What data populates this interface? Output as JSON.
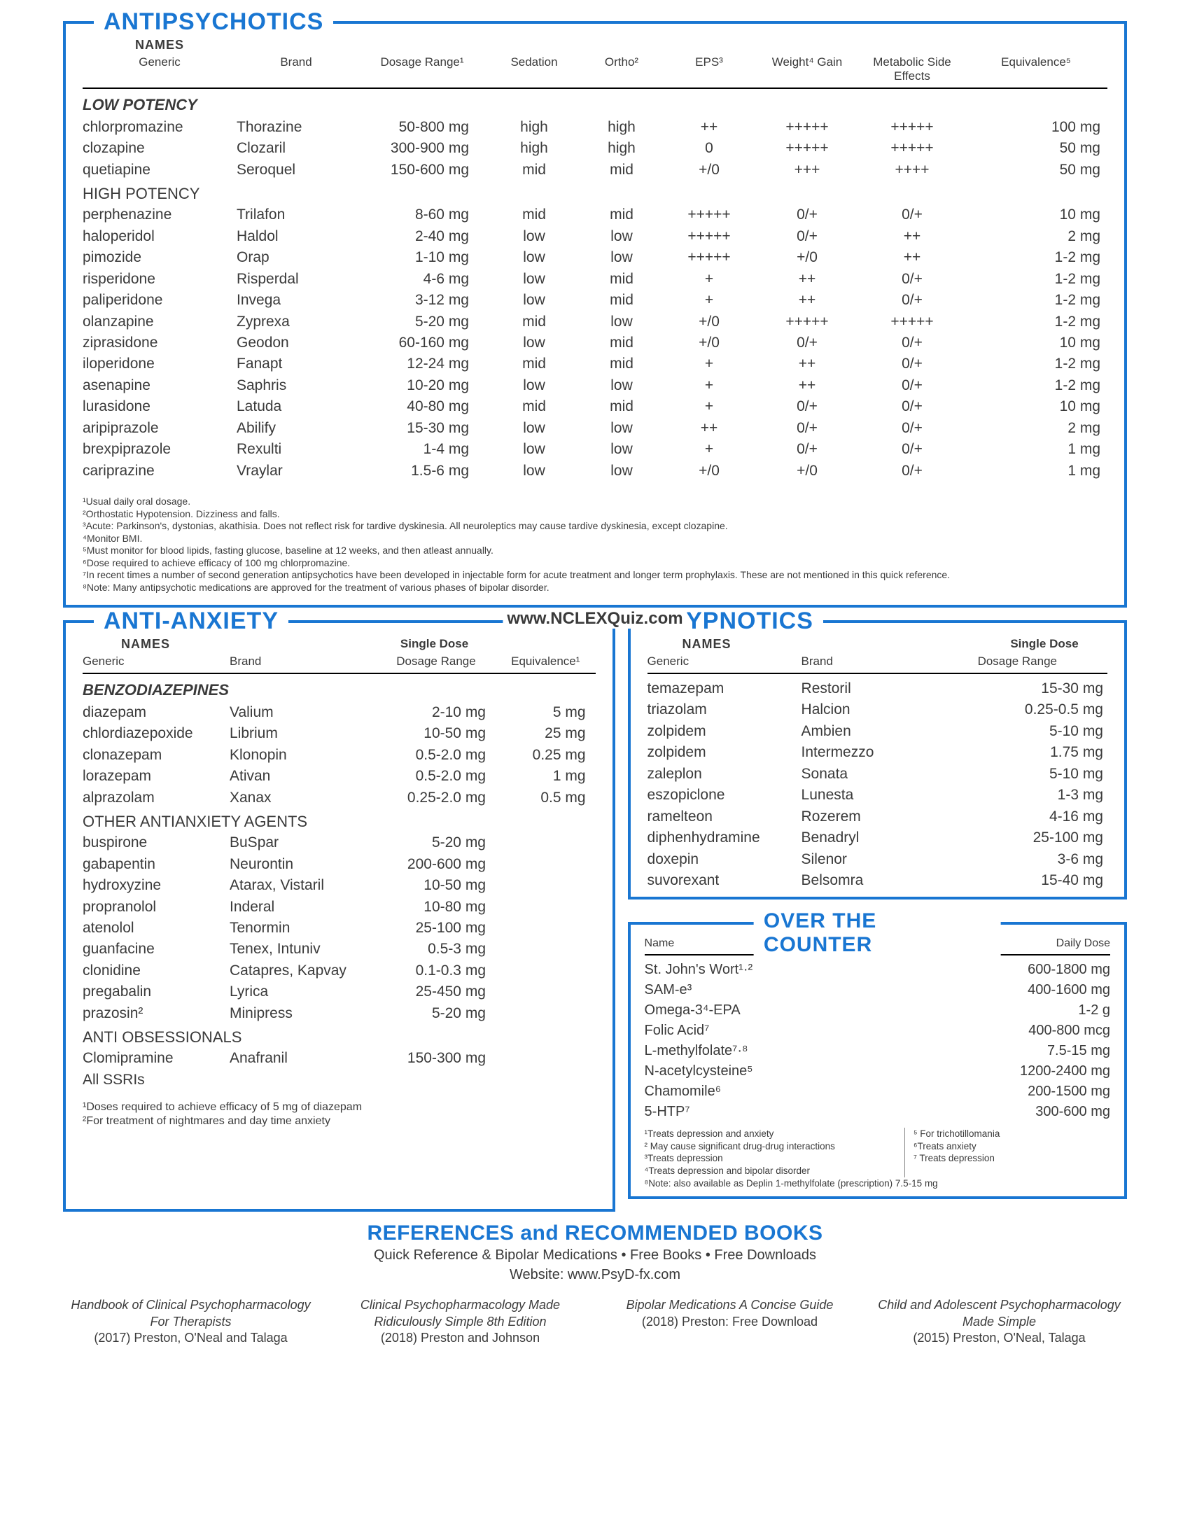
{
  "colors": {
    "accent": "#1976d2",
    "text": "#3a3a3a"
  },
  "watermark": "www.NCLEXQuiz.com",
  "antipsychotics": {
    "title": "ANTIPSYCHOTICS",
    "names_label": "NAMES",
    "columns": [
      "Generic",
      "Brand",
      "Dosage Range¹",
      "Sedation",
      "Ortho²",
      "EPS³",
      "Weight⁴ Gain",
      "Metabolic Side Effects",
      "Equivalence⁵"
    ],
    "groups": [
      {
        "label": "LOW POTENCY",
        "italic": true,
        "rows": [
          [
            "chlorpromazine",
            "Thorazine",
            "50-800 mg",
            "high",
            "high",
            "++",
            "+++++",
            "+++++",
            "100 mg"
          ],
          [
            "clozapine",
            "Clozaril",
            "300-900 mg",
            "high",
            "high",
            "0",
            "+++++",
            "+++++",
            "50 mg"
          ],
          [
            "quetiapine",
            "Seroquel",
            "150-600 mg",
            "mid",
            "mid",
            "+/0",
            "+++",
            "++++",
            "50 mg"
          ]
        ]
      },
      {
        "label": "HIGH POTENCY",
        "italic": false,
        "rows": [
          [
            "perphenazine",
            "Trilafon",
            "8-60  mg",
            "mid",
            "mid",
            "+++++",
            "0/+",
            "0/+",
            "10 mg"
          ],
          [
            "haloperidol",
            "Haldol",
            "2-40  mg",
            "low",
            "low",
            "+++++",
            "0/+",
            "++",
            "2 mg"
          ],
          [
            "pimozide",
            "Orap",
            "1-10  mg",
            "low",
            "low",
            "+++++",
            "+/0",
            "++",
            "1-2 mg"
          ],
          [
            "risperidone",
            "Risperdal",
            "4-6  mg",
            "low",
            "mid",
            "+",
            "++",
            "0/+",
            "1-2 mg"
          ],
          [
            "paliperidone",
            "Invega",
            "3-12  mg",
            "low",
            "mid",
            "+",
            "++",
            "0/+",
            "1-2 mg"
          ],
          [
            "olanzapine",
            "Zyprexa",
            "5-20 mg",
            "mid",
            "low",
            "+/0",
            "+++++",
            "+++++",
            "1-2 mg"
          ],
          [
            "ziprasidone",
            "Geodon",
            "60-160 mg",
            "low",
            "mid",
            "+/0",
            "0/+",
            "0/+",
            "10 mg"
          ],
          [
            "iloperidone",
            "Fanapt",
            "12-24  mg",
            "mid",
            "mid",
            "+",
            "++",
            "0/+",
            "1-2 mg"
          ],
          [
            "asenapine",
            "Saphris",
            "10-20  mg",
            "low",
            "low",
            "+",
            "++",
            "0/+",
            "1-2 mg"
          ],
          [
            "lurasidone",
            "Latuda",
            "40-80  mg",
            "mid",
            "mid",
            "+",
            "0/+",
            "0/+",
            "10 mg"
          ],
          [
            "aripiprazole",
            "Abilify",
            "15-30  mg",
            "low",
            "low",
            "++",
            "0/+",
            "0/+",
            "2 mg"
          ],
          [
            "brexpiprazole",
            "Rexulti",
            "1-4    mg",
            "low",
            "low",
            "+",
            "0/+",
            "0/+",
            "1 mg"
          ],
          [
            "cariprazine",
            "Vraylar",
            "1.5-6 mg",
            "low",
            "low",
            "+/0",
            "+/0",
            "0/+",
            "1 mg"
          ]
        ]
      }
    ],
    "footnotes": [
      "¹Usual daily oral dosage.",
      "²Orthostatic Hypotension. Dizziness and falls.",
      "³Acute: Parkinson's, dystonias, akathisia. Does not reflect risk for tardive dyskinesia.  All neuroleptics may cause tardive dyskinesia, except clozapine.",
      "⁴Monitor BMI.",
      "⁵Must monitor for blood lipids, fasting glucose, baseline at 12 weeks, and then atleast annually.",
      "⁶Dose required to achieve efficacy of 100 mg chlorpromazine.",
      "⁷In recent times a number of second generation antipsychotics have been developed in injectable form for acute treatment and longer term prophylaxis. These are not mentioned in this quick reference.",
      "⁸Note: Many antipsychotic medications are approved for the treatment of various phases of bipolar disorder."
    ]
  },
  "antianxiety": {
    "title": "ANTI-ANXIETY",
    "names_label": "NAMES",
    "dose_label": "Single Dose",
    "columns": [
      "Generic",
      "Brand",
      "Dosage Range",
      "Equivalence¹"
    ],
    "groups": [
      {
        "label": "BENZODIAZEPINES",
        "italic": true,
        "rows": [
          [
            "diazepam",
            "Valium",
            "2-10 mg",
            "5 mg"
          ],
          [
            "chlordiazepoxide",
            "Librium",
            "10-50 mg",
            "25 mg"
          ],
          [
            "clonazepam",
            "Klonopin",
            "0.5-2.0 mg",
            "0.25 mg"
          ],
          [
            "lorazepam",
            "Ativan",
            "0.5-2.0 mg",
            "1 mg"
          ],
          [
            "alprazolam",
            "Xanax",
            "0.25-2.0 mg",
            "0.5 mg"
          ]
        ]
      },
      {
        "label": "OTHER ANTIANXIETY AGENTS",
        "italic": false,
        "rows": [
          [
            "buspirone",
            "BuSpar",
            "5-20 mg",
            ""
          ],
          [
            "gabapentin",
            "Neurontin",
            "200-600 mg",
            ""
          ],
          [
            "hydroxyzine",
            "Atarax, Vistaril",
            "10-50 mg",
            ""
          ],
          [
            "propranolol",
            "Inderal",
            "10-80 mg",
            ""
          ],
          [
            "atenolol",
            "Tenormin",
            "25-100 mg",
            ""
          ],
          [
            "guanfacine",
            "Tenex, Intuniv",
            "0.5-3 mg",
            ""
          ],
          [
            "clonidine",
            "Catapres, Kapvay",
            "0.1-0.3 mg",
            ""
          ],
          [
            "pregabalin",
            "Lyrica",
            "25-450 mg",
            ""
          ],
          [
            "prazosin²",
            "Minipress",
            "5-20 mg",
            ""
          ]
        ]
      },
      {
        "label": "ANTI OBSESSIONALS",
        "italic": false,
        "rows": [
          [
            "Clomipramine",
            "Anafranil",
            "150-300 mg",
            ""
          ],
          [
            "All SSRIs",
            "",
            "",
            ""
          ]
        ]
      }
    ],
    "footnotes": [
      "¹Doses required to achieve efficacy of 5 mg of diazepam",
      "²For treatment of nightmares and day time anxiety"
    ]
  },
  "hypnotics": {
    "title": "HYPNOTICS",
    "names_label": "NAMES",
    "dose_label": "Single Dose",
    "columns": [
      "Generic",
      "Brand",
      "Dosage Range"
    ],
    "rows": [
      [
        "temazepam",
        "Restoril",
        "15-30 mg"
      ],
      [
        "triazolam",
        "Halcion",
        "0.25-0.5 mg"
      ],
      [
        "zolpidem",
        "Ambien",
        "5-10 mg"
      ],
      [
        "zolpidem",
        "Intermezzo",
        "1.75 mg"
      ],
      [
        "zaleplon",
        "Sonata",
        "5-10 mg"
      ],
      [
        "eszopiclone",
        "Lunesta",
        "1-3 mg"
      ],
      [
        "ramelteon",
        "Rozerem",
        "4-16 mg"
      ],
      [
        "diphenhydramine",
        "Benadryl",
        "25-100 mg"
      ],
      [
        "doxepin",
        "Silenor",
        "3-6 mg"
      ],
      [
        "suvorexant",
        "Belsomra",
        "15-40 mg"
      ]
    ]
  },
  "otc": {
    "title": "OVER THE COUNTER",
    "columns": [
      "Name",
      "Daily Dose"
    ],
    "rows": [
      [
        "St. John's Wort¹·²",
        "600-1800 mg"
      ],
      [
        "SAM-e³",
        "400-1600 mg"
      ],
      [
        "Omega-3⁴-EPA",
        "1-2 g"
      ],
      [
        "Folic Acid⁷",
        "400-800 mcg"
      ],
      [
        "L-methylfolate⁷·⁸",
        "7.5-15 mg"
      ],
      [
        "N-acetylcysteine⁵",
        "1200-2400 mg"
      ],
      [
        "Chamomile⁶",
        "200-1500 mg"
      ],
      [
        "5-HTP⁷",
        "300-600 mg"
      ]
    ],
    "footnotes_left": [
      "¹Treats depression and anxiety",
      "² May cause significant drug-drug interactions",
      "³Treats depression",
      "⁴Treats depression and bipolar disorder"
    ],
    "footnotes_right": [
      "⁵ For trichotillomania",
      "⁶Treats anxiety",
      "⁷ Treats depression"
    ],
    "footnote_bottom": "⁸Note: also available as Deplin 1-methylfolate (prescription) 7.5-15 mg"
  },
  "refs": {
    "title": "REFERENCES and RECOMMENDED BOOKS",
    "sub1": "Quick Reference & Bipolar Medications • Free Books • Free Downloads",
    "sub2": "Website: www.PsyD-fx.com",
    "books": [
      {
        "title": "Handbook of Clinical Psychopharmacology For Therapists",
        "byline": "(2017) Preston, O'Neal and Talaga"
      },
      {
        "title": "Clinical Psychopharmacology Made Ridiculously Simple 8th Edition",
        "byline": "(2018) Preston and Johnson"
      },
      {
        "title": "Bipolar Medications A Concise Guide",
        "byline": "(2018) Preston: Free Download"
      },
      {
        "title": "Child and Adolescent Psychopharmacology Made Simple",
        "byline": "(2015)  Preston, O'Neal, Talaga"
      }
    ]
  }
}
